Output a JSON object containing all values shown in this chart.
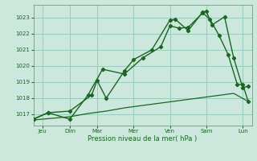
{
  "background_color": "#cce8dc",
  "grid_color": "#99ccbb",
  "line_color": "#1a6622",
  "x_labels": [
    "Jeu",
    "Dim",
    "Mar",
    "Mer",
    "Ven",
    "Sam",
    "Lun"
  ],
  "xlabel": "Pression niveau de la mer( hPa )",
  "ylim": [
    1016.3,
    1023.8
  ],
  "yticks": [
    1017,
    1018,
    1019,
    1020,
    1021,
    1022,
    1023
  ],
  "xlim": [
    0,
    12
  ],
  "x_tick_pos": [
    0.5,
    2.0,
    3.5,
    5.5,
    7.5,
    9.5,
    11.5
  ],
  "line1_x": [
    0.0,
    0.8,
    2.0,
    3.2,
    3.5,
    4.0,
    5.0,
    5.5,
    6.5,
    7.5,
    7.8,
    8.5,
    9.3,
    9.5,
    9.8,
    10.5,
    11.0,
    11.5,
    11.8
  ],
  "line1_y": [
    1016.7,
    1017.1,
    1017.2,
    1018.2,
    1019.1,
    1018.0,
    1019.7,
    1020.4,
    1021.0,
    1022.85,
    1022.9,
    1022.2,
    1023.35,
    1023.4,
    1022.55,
    1023.05,
    1020.5,
    1018.65,
    1018.75
  ],
  "line2_x": [
    0.0,
    0.8,
    2.0,
    3.0,
    3.8,
    5.0,
    6.0,
    7.0,
    7.5,
    8.0,
    8.5,
    9.3,
    9.7,
    10.2,
    10.7,
    11.2,
    11.5,
    11.8
  ],
  "line2_y": [
    1016.7,
    1017.1,
    1016.7,
    1018.2,
    1019.8,
    1019.5,
    1020.5,
    1021.2,
    1022.5,
    1022.35,
    1022.4,
    1023.3,
    1022.9,
    1021.9,
    1020.7,
    1018.85,
    1018.85,
    1017.8
  ],
  "line3_x": [
    0.0,
    1.0,
    2.0,
    3.0,
    4.0,
    5.0,
    6.0,
    7.0,
    8.0,
    9.0,
    10.0,
    11.0,
    11.8
  ],
  "line3_y": [
    1016.65,
    1016.75,
    1016.85,
    1017.05,
    1017.2,
    1017.4,
    1017.55,
    1017.7,
    1017.85,
    1018.0,
    1018.15,
    1018.3,
    1017.8
  ]
}
